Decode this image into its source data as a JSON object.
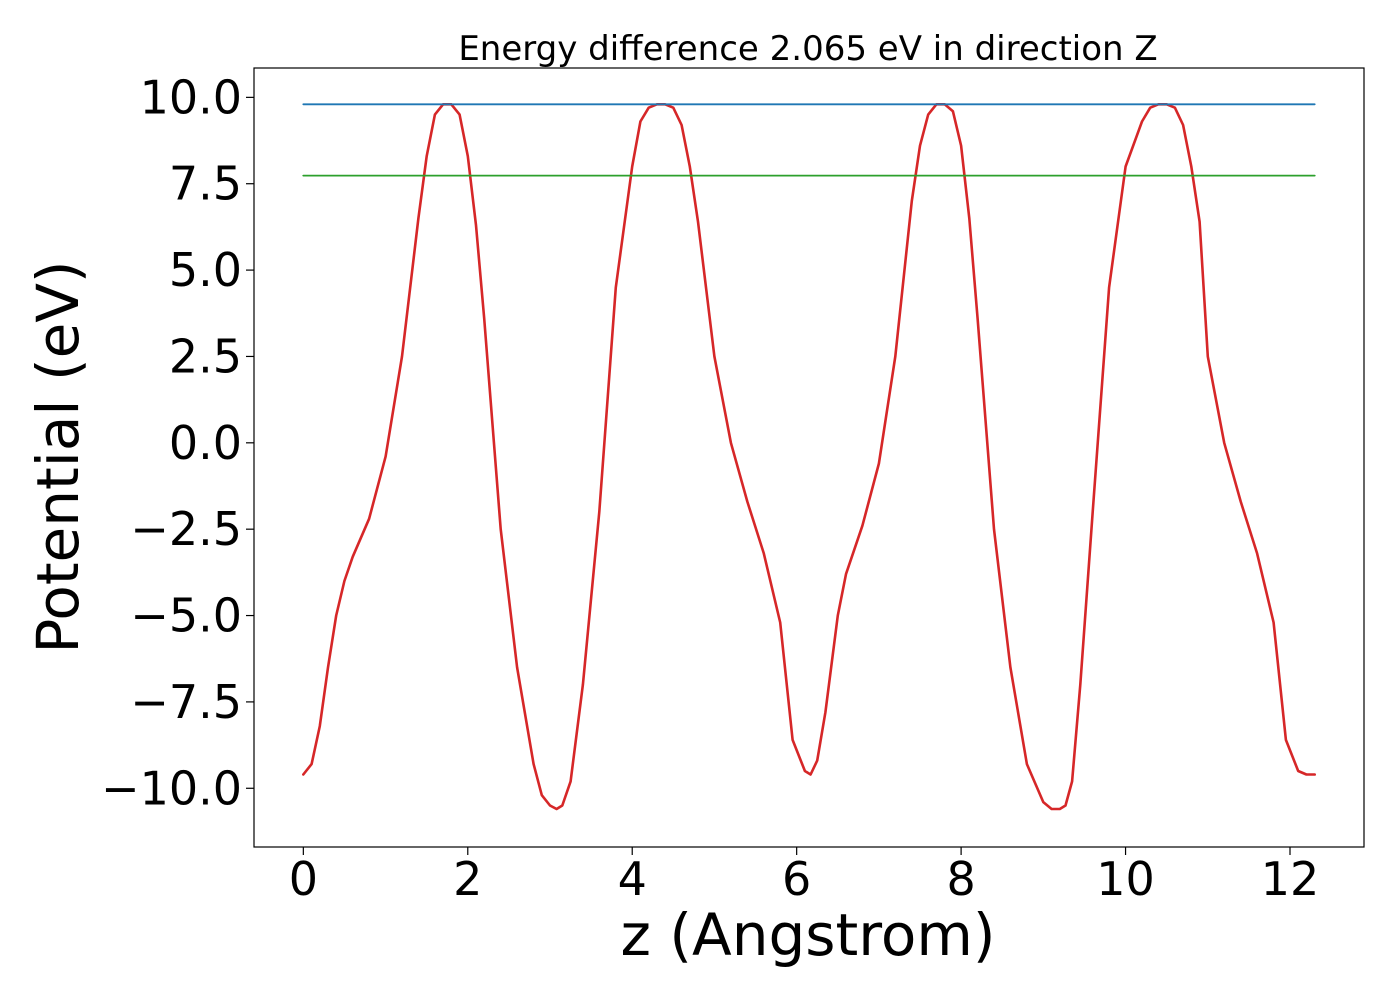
{
  "chart_data": {
    "type": "line",
    "title": "Energy difference 2.065 eV in direction Z",
    "xlabel": "z (Angstrom)",
    "ylabel": "Potential (eV)",
    "xlim": [
      -0.6,
      12.9
    ],
    "ylim": [
      -11.7,
      10.85
    ],
    "xticks": [
      0,
      2,
      4,
      6,
      8,
      10,
      12
    ],
    "xtick_labels": [
      "0",
      "2",
      "4",
      "6",
      "8",
      "10",
      "12"
    ],
    "yticks": [
      -10,
      -7.5,
      -5,
      -2.5,
      0,
      2.5,
      5,
      7.5,
      10
    ],
    "ytick_labels": [
      "−10.0",
      "−7.5",
      "−5.0",
      "−2.5",
      "0.0",
      "2.5",
      "5.0",
      "7.5",
      "10.0"
    ],
    "grid": false,
    "series": [
      {
        "color": "#d62728",
        "x": [
          0,
          0.1,
          0.2,
          0.3,
          0.4,
          0.5,
          0.6,
          0.8,
          1.0,
          1.2,
          1.4,
          1.5,
          1.6,
          1.7,
          1.8,
          1.9,
          2.0,
          2.1,
          2.2,
          2.4,
          2.6,
          2.8,
          2.9,
          3.0,
          3.08,
          3.15,
          3.25,
          3.4,
          3.6,
          3.8,
          4.0,
          4.1,
          4.2,
          4.3,
          4.4,
          4.5,
          4.6,
          4.7,
          4.8,
          5.0,
          5.2,
          5.4,
          5.6,
          5.8,
          5.95,
          6.1,
          6.17,
          6.25,
          6.35,
          6.5,
          6.6,
          6.8,
          7.0,
          7.2,
          7.4,
          7.5,
          7.6,
          7.7,
          7.8,
          7.9,
          8.0,
          8.1,
          8.2,
          8.4,
          8.6,
          8.8,
          9.0,
          9.1,
          9.2,
          9.27,
          9.35,
          9.45,
          9.6,
          9.8,
          10.0,
          10.2,
          10.3,
          10.4,
          10.5,
          10.6,
          10.7,
          10.8,
          10.9,
          11.0,
          11.2,
          11.4,
          11.6,
          11.8,
          11.95,
          12.1,
          12.2,
          12.3
        ],
        "y": [
          -9.6,
          -9.3,
          -8.2,
          -6.5,
          -5.0,
          -4.0,
          -3.3,
          -2.2,
          -0.4,
          2.5,
          6.5,
          8.3,
          9.5,
          9.8,
          9.8,
          9.5,
          8.3,
          6.3,
          3.6,
          -2.5,
          -6.5,
          -9.3,
          -10.2,
          -10.5,
          -10.6,
          -10.5,
          -9.8,
          -7.0,
          -2.0,
          4.5,
          8.0,
          9.3,
          9.7,
          9.8,
          9.8,
          9.7,
          9.2,
          8.0,
          6.4,
          2.5,
          0.0,
          -1.7,
          -3.2,
          -5.2,
          -8.6,
          -9.5,
          -9.6,
          -9.2,
          -7.8,
          -5.0,
          -3.8,
          -2.4,
          -0.6,
          2.5,
          7.0,
          8.6,
          9.5,
          9.8,
          9.8,
          9.6,
          8.6,
          6.5,
          3.6,
          -2.5,
          -6.5,
          -9.3,
          -10.4,
          -10.6,
          -10.6,
          -10.5,
          -9.8,
          -7.0,
          -2.0,
          4.5,
          8.0,
          9.3,
          9.7,
          9.8,
          9.8,
          9.7,
          9.2,
          8.0,
          6.4,
          2.5,
          0.0,
          -1.7,
          -3.2,
          -5.2,
          -8.6,
          -9.5,
          -9.6,
          -9.6
        ]
      },
      {
        "color": "#1f77b4",
        "x": [
          0,
          12.3
        ],
        "y": [
          9.8,
          9.8
        ]
      },
      {
        "color": "#2ca02c",
        "x": [
          0,
          12.3
        ],
        "y": [
          7.735,
          7.735
        ]
      }
    ],
    "colors": {
      "axes": "#000000",
      "background": "#ffffff"
    }
  }
}
